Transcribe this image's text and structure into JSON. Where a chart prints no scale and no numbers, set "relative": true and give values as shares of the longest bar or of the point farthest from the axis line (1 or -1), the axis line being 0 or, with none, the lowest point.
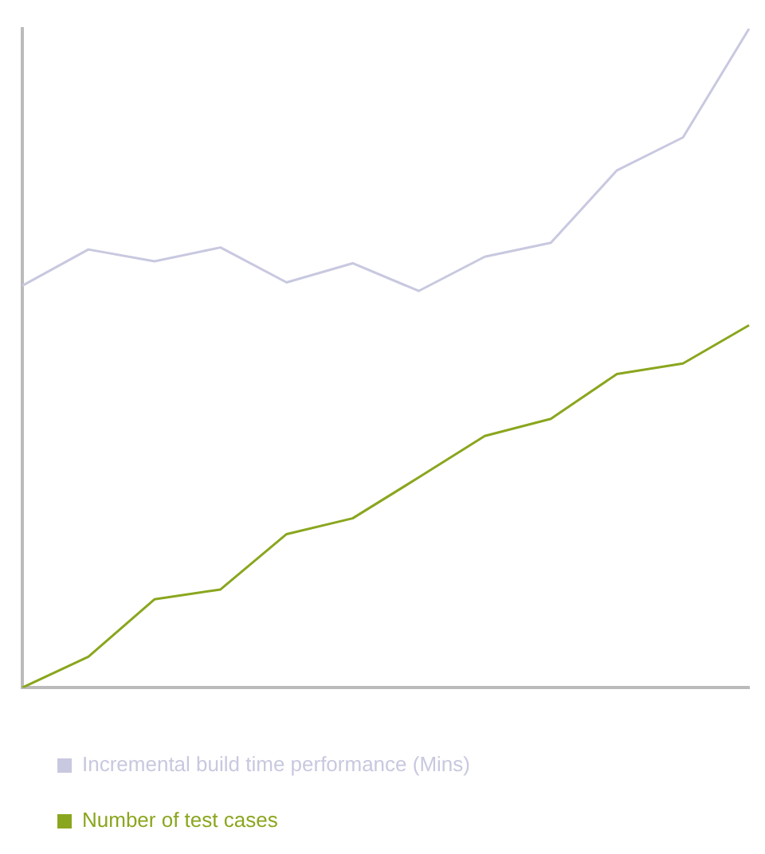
{
  "chart_data": {
    "type": "line",
    "relative": true,
    "categories": [
      null,
      null,
      null,
      null,
      null,
      null,
      null,
      null,
      null,
      null,
      null,
      null
    ],
    "series": [
      {
        "name": "Incremental build time performance (Mins)",
        "color": "#c8c8e0",
        "values": [
          0.61,
          0.665,
          0.647,
          0.668,
          0.615,
          0.644,
          0.602,
          0.654,
          0.675,
          0.785,
          0.835,
          1
        ]
      },
      {
        "name": "Number of test cases",
        "color": "#8aa61e",
        "values": [
          0,
          0.047,
          0.134,
          0.149,
          0.233,
          0.257,
          0.319,
          0.382,
          0.408,
          0.476,
          0.492,
          0.55
        ]
      }
    ],
    "legend": "bottom left",
    "grid": false,
    "marker": "none",
    "line_style": "solid"
  }
}
